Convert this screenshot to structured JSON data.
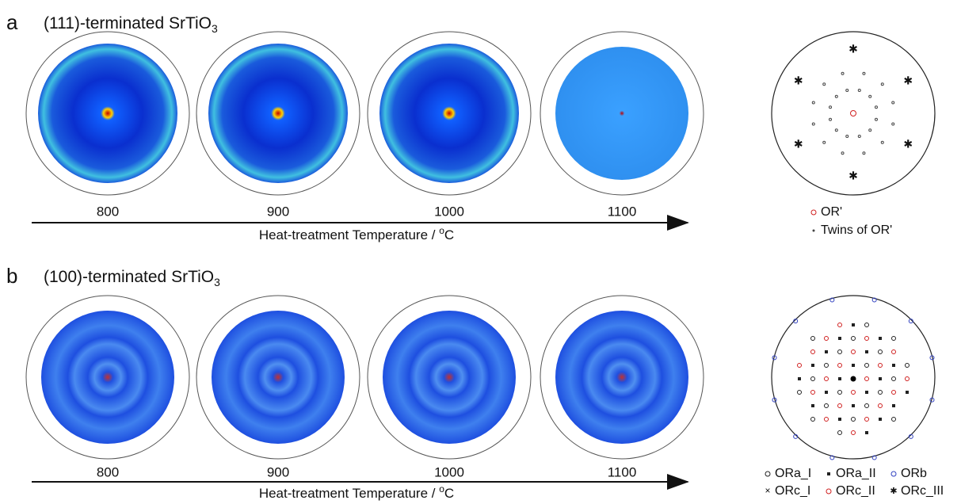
{
  "panels": [
    {
      "label": "a",
      "title": {
        "text": "(111)-terminated SrTiO",
        "subscript": "3"
      },
      "temperatures": [
        "800",
        "900",
        "1000",
        "1100"
      ],
      "axis_label": {
        "text": "Heat-treatment Temperature / ",
        "superscript": "o",
        "unit": "C"
      },
      "legend": [
        "OR'",
        "Twins of OR'"
      ]
    },
    {
      "label": "b",
      "title": {
        "text": "(100)-terminated SrTiO",
        "subscript": "3"
      },
      "temperatures": [
        "800",
        "900",
        "1000",
        "1100"
      ],
      "axis_label": {
        "text": "Heat-treatment Temperature / ",
        "superscript": "o",
        "unit": "C"
      },
      "legend": [
        "ORa_I",
        "ORa_II",
        "ORb",
        "ORc_I",
        "ORc_II",
        "ORc_III"
      ]
    }
  ]
}
